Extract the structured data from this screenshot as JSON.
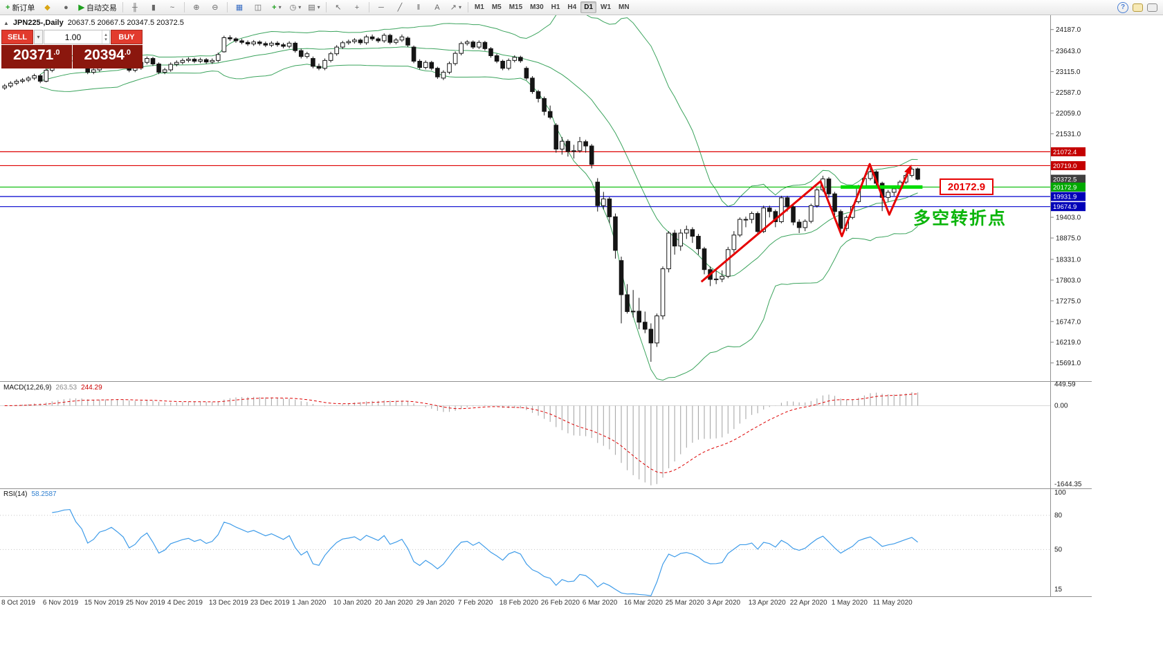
{
  "toolbar": {
    "new_order_label": "新订单",
    "autotrade_label": "自动交易",
    "timeframes": [
      "M1",
      "M5",
      "M15",
      "M30",
      "H1",
      "H4",
      "D1",
      "W1",
      "MN"
    ],
    "active_timeframe": "D1"
  },
  "icons": {
    "new_order_plus": "+",
    "mql5": "◆",
    "user": "●",
    "play": "▶",
    "bar_chart": "╫",
    "candles": "▮",
    "line_chart": "~",
    "zoom_in": "⊕",
    "zoom_out": "⊖",
    "indicators": "▦",
    "tile_windows": "◫",
    "new_chart_plus": "+",
    "period": "◷",
    "templates": "▤",
    "cursor": "↖",
    "crosshair": "+",
    "hline": "─",
    "trendline": "╱",
    "channel": "‖",
    "text_tool": "A",
    "arrow_tool": "↗",
    "dropdown": "▾",
    "collapse": "▲",
    "help": "?",
    "spin_up": "▴",
    "spin_down": "▾"
  },
  "chart_header": {
    "symbol": "JPN225-,Daily",
    "ohlc": "20637.5 20667.5 20347.5 20372.5"
  },
  "trade_widget": {
    "sell_label": "SELL",
    "buy_label": "BUY",
    "volume": "1.00",
    "sell_price_big": "20371",
    "sell_price_small": ".0",
    "buy_price_big": "20394",
    "buy_price_small": ".0"
  },
  "price_axis": {
    "ticks": [
      "24187.0",
      "23643.0",
      "23115.0",
      "22587.0",
      "22059.0",
      "21531.0",
      "19403.0",
      "18875.0",
      "18331.0",
      "17803.0",
      "17275.0",
      "16747.0",
      "16219.0",
      "15691.0"
    ],
    "levels": [
      {
        "label": "21072.4",
        "price": 21072.4,
        "line_color": "#dd0000",
        "box_color": "#c40000"
      },
      {
        "label": "20719.0",
        "price": 20719.0,
        "line_color": "#dd0000",
        "box_color": "#c40000"
      },
      {
        "label": "20372.5",
        "price": 20372.5,
        "line_color": null,
        "box_color": "#3f3f3f",
        "current": true
      },
      {
        "label": "20172.9",
        "price": 20172.9,
        "line_color": "#00bb00",
        "box_color": "#00a800"
      },
      {
        "label": "19931.9",
        "price": 19931.9,
        "line_color": "#0000cd",
        "box_color": "#0000b8"
      },
      {
        "label": "19674.9",
        "price": 19674.9,
        "line_color": "#0000cd",
        "box_color": "#0000b8"
      }
    ]
  },
  "annotations": {
    "zigzag": {
      "color": "#e60000",
      "width": 3,
      "points": [
        {
          "i": 117.5,
          "p": 17760
        },
        {
          "i": 137.6,
          "p": 20320
        },
        {
          "i": 141.2,
          "p": 18920
        },
        {
          "i": 145.9,
          "p": 20760
        },
        {
          "i": 149.2,
          "p": 19470
        },
        {
          "i": 152.8,
          "p": 20700
        }
      ]
    },
    "support_segment": {
      "price": 20172.9,
      "i1": 141,
      "i2": 154.8,
      "color": "#00dd00",
      "width": 5
    },
    "price_callout": {
      "text": "20172.9",
      "anchor_price": 20172.9,
      "color": "#e60000"
    },
    "turning_point": {
      "text": "多空转折点",
      "color": "#0bb50b"
    }
  },
  "macd_panel": {
    "label": "MACD(12,26,9)",
    "value_main": "263.53",
    "value_signal": "244.29",
    "axis_labels": [
      "449.59",
      "0.00",
      "-1644.35"
    ],
    "histogram_color": "#a8a8a8",
    "signal_color": "#dd0000"
  },
  "rsi_panel": {
    "label": "RSI(14)",
    "value": "58.2587",
    "axis_labels": [
      "100",
      "80",
      "50",
      "15"
    ],
    "levels": [
      80,
      50
    ],
    "line_color": "#3d9be9"
  },
  "chart_data": {
    "type": "candlestick",
    "symbol": "JPN225-",
    "timeframe": "Daily",
    "current_ohlc": [
      20637.5,
      20667.5,
      20347.5,
      20372.5
    ],
    "ylim": [
      15280,
      24270
    ],
    "x_labels": [
      "8 Oct 2019",
      "6 Nov 2019",
      "15 Nov 2019",
      "25 Nov 2019",
      "4 Dec 2019",
      "13 Dec 2019",
      "23 Dec 2019",
      "1 Jan 2020",
      "10 Jan 2020",
      "20 Jan 2020",
      "29 Jan 2020",
      "7 Feb 2020",
      "18 Feb 2020",
      "26 Feb 2020",
      "6 Mar 2020",
      "16 Mar 2020",
      "25 Mar 2020",
      "3 Apr 2020",
      "13 Apr 2020",
      "22 Apr 2020",
      "1 May 2020",
      "11 May 2020"
    ],
    "overlays": [
      {
        "name": "Bollinger Bands",
        "period": 20,
        "deviation": 2,
        "color": "#3aa35c"
      }
    ],
    "indicators": [
      {
        "name": "MACD",
        "params": [
          12,
          26,
          9
        ],
        "current": [
          263.53,
          244.29
        ],
        "range": [
          -1644.35,
          449.59
        ]
      },
      {
        "name": "RSI",
        "params": [
          14
        ],
        "current": 58.2587
      }
    ],
    "candles_ohlc": [
      [
        22700,
        22800,
        22650,
        22750
      ],
      [
        22750,
        22870,
        22700,
        22820
      ],
      [
        22820,
        22920,
        22770,
        22870
      ],
      [
        22870,
        22950,
        22820,
        22900
      ],
      [
        22900,
        23000,
        22850,
        22950
      ],
      [
        22950,
        23060,
        22900,
        23010
      ],
      [
        23010,
        23050,
        22820,
        22870
      ],
      [
        22870,
        23200,
        22840,
        23150
      ],
      [
        23150,
        23340,
        23100,
        23290
      ],
      [
        23290,
        23370,
        23240,
        23320
      ],
      [
        23320,
        23430,
        23270,
        23380
      ],
      [
        23380,
        23450,
        23330,
        23400
      ],
      [
        23400,
        23440,
        23260,
        23310
      ],
      [
        23310,
        23360,
        23200,
        23250
      ],
      [
        23250,
        23300,
        23050,
        23100
      ],
      [
        23100,
        23210,
        23050,
        23160
      ],
      [
        23160,
        23350,
        23110,
        23300
      ],
      [
        23300,
        23390,
        23250,
        23340
      ],
      [
        23340,
        23460,
        23290,
        23410
      ],
      [
        23410,
        23450,
        23310,
        23360
      ],
      [
        23360,
        23410,
        23250,
        23300
      ],
      [
        23300,
        23340,
        23100,
        23150
      ],
      [
        23150,
        23260,
        23100,
        23210
      ],
      [
        23210,
        23400,
        23160,
        23350
      ],
      [
        23350,
        23500,
        23300,
        23450
      ],
      [
        23450,
        23490,
        23260,
        23310
      ],
      [
        23310,
        23350,
        23050,
        23100
      ],
      [
        23100,
        23210,
        23050,
        23160
      ],
      [
        23160,
        23350,
        23110,
        23300
      ],
      [
        23300,
        23400,
        23250,
        23350
      ],
      [
        23350,
        23450,
        23300,
        23400
      ],
      [
        23400,
        23480,
        23350,
        23430
      ],
      [
        23430,
        23470,
        23330,
        23380
      ],
      [
        23380,
        23470,
        23330,
        23420
      ],
      [
        23420,
        23460,
        23310,
        23360
      ],
      [
        23360,
        23450,
        23310,
        23400
      ],
      [
        23400,
        23600,
        23350,
        23550
      ],
      [
        23620,
        24030,
        23600,
        23980
      ],
      [
        23980,
        24040,
        23900,
        23950
      ],
      [
        23950,
        23990,
        23850,
        23900
      ],
      [
        23900,
        23950,
        23810,
        23860
      ],
      [
        23860,
        23910,
        23770,
        23820
      ],
      [
        23820,
        23920,
        23770,
        23870
      ],
      [
        23870,
        23910,
        23780,
        23830
      ],
      [
        23830,
        23880,
        23740,
        23790
      ],
      [
        23790,
        23890,
        23740,
        23840
      ],
      [
        23840,
        23890,
        23750,
        23800
      ],
      [
        23800,
        23850,
        23710,
        23760
      ],
      [
        23760,
        23890,
        23710,
        23840
      ],
      [
        23840,
        23880,
        23600,
        23650
      ],
      [
        23650,
        23700,
        23450,
        23500
      ],
      [
        23500,
        23620,
        23450,
        23570
      ],
      [
        23450,
        23500,
        23200,
        23250
      ],
      [
        23250,
        23320,
        23150,
        23200
      ],
      [
        23200,
        23450,
        23150,
        23400
      ],
      [
        23400,
        23620,
        23350,
        23570
      ],
      [
        23570,
        23790,
        23520,
        23740
      ],
      [
        23740,
        23900,
        23690,
        23850
      ],
      [
        23850,
        23930,
        23800,
        23880
      ],
      [
        23880,
        23970,
        23830,
        23920
      ],
      [
        23920,
        23960,
        23800,
        23850
      ],
      [
        23850,
        24050,
        23800,
        24000
      ],
      [
        24000,
        24060,
        23900,
        23950
      ],
      [
        23950,
        23990,
        23850,
        23900
      ],
      [
        23900,
        24090,
        23850,
        24040
      ],
      [
        24040,
        24080,
        23810,
        23860
      ],
      [
        23860,
        23970,
        23810,
        23920
      ],
      [
        23920,
        24060,
        23870,
        24000
      ],
      [
        23970,
        24010,
        23740,
        23790
      ],
      [
        23740,
        23780,
        23330,
        23380
      ],
      [
        23380,
        23430,
        23170,
        23220
      ],
      [
        23220,
        23400,
        23170,
        23350
      ],
      [
        23350,
        23390,
        23150,
        23200
      ],
      [
        23200,
        23240,
        22930,
        22980
      ],
      [
        22950,
        23150,
        22900,
        23100
      ],
      [
        23100,
        23370,
        23050,
        23320
      ],
      [
        23320,
        23630,
        23270,
        23580
      ],
      [
        23580,
        23880,
        23530,
        23830
      ],
      [
        23830,
        23920,
        23780,
        23870
      ],
      [
        23870,
        23910,
        23690,
        23740
      ],
      [
        23740,
        23910,
        23690,
        23860
      ],
      [
        23860,
        23900,
        23650,
        23700
      ],
      [
        23700,
        23740,
        23470,
        23520
      ],
      [
        23520,
        23570,
        23330,
        23380
      ],
      [
        23380,
        23420,
        23150,
        23200
      ],
      [
        23200,
        23450,
        23150,
        23400
      ],
      [
        23400,
        23530,
        23350,
        23480
      ],
      [
        23480,
        23520,
        23340,
        23390
      ],
      [
        23200,
        23250,
        22900,
        22950
      ],
      [
        22950,
        23000,
        22550,
        22605
      ],
      [
        22605,
        22650,
        22330,
        22430
      ],
      [
        22430,
        22480,
        22000,
        22100
      ],
      [
        22100,
        22250,
        21900,
        21950
      ],
      [
        21750,
        21800,
        21050,
        21140
      ],
      [
        21140,
        21450,
        21000,
        21340
      ],
      [
        21340,
        21390,
        20950,
        21080
      ],
      [
        21080,
        21250,
        20900,
        21100
      ],
      [
        21100,
        21450,
        21050,
        21330
      ],
      [
        21330,
        21380,
        21050,
        21220
      ],
      [
        21220,
        21270,
        20650,
        20750
      ],
      [
        20300,
        20400,
        19550,
        19700
      ],
      [
        19700,
        20050,
        19600,
        19870
      ],
      [
        19870,
        19920,
        19250,
        19416
      ],
      [
        19416,
        19500,
        18350,
        18560
      ],
      [
        18300,
        18400,
        16700,
        17430
      ],
      [
        17430,
        17700,
        16950,
        17000
      ],
      [
        17000,
        17550,
        16850,
        17010
      ],
      [
        17010,
        17350,
        16550,
        16730
      ],
      [
        16730,
        17000,
        16450,
        16550
      ],
      [
        16550,
        16700,
        15720,
        16200
      ],
      [
        16200,
        16950,
        16100,
        16890
      ],
      [
        16890,
        18150,
        16800,
        18090
      ],
      [
        18090,
        19050,
        18000,
        19000
      ],
      [
        19000,
        19080,
        18450,
        18670
      ],
      [
        18670,
        19100,
        18550,
        19000
      ],
      [
        19000,
        19190,
        18850,
        19090
      ],
      [
        19090,
        19150,
        18750,
        18920
      ],
      [
        18920,
        18980,
        18450,
        18600
      ],
      [
        18600,
        18650,
        17950,
        18070
      ],
      [
        18070,
        18150,
        17650,
        17820
      ],
      [
        17820,
        18100,
        17700,
        17830
      ],
      [
        17830,
        18050,
        17750,
        17900
      ],
      [
        17900,
        18650,
        17850,
        18580
      ],
      [
        18580,
        19050,
        18500,
        18950
      ],
      [
        18950,
        19400,
        18900,
        19350
      ],
      [
        19350,
        19420,
        19150,
        19350
      ],
      [
        19350,
        19550,
        19250,
        19500
      ],
      [
        19500,
        19550,
        18950,
        19040
      ],
      [
        19040,
        19700,
        19000,
        19640
      ],
      [
        19640,
        19700,
        19400,
        19550
      ],
      [
        19550,
        19600,
        19150,
        19290
      ],
      [
        19290,
        19950,
        19250,
        19900
      ],
      [
        19900,
        19950,
        19550,
        19670
      ],
      [
        19670,
        19720,
        19200,
        19280
      ],
      [
        19280,
        19350,
        19000,
        19140
      ],
      [
        19140,
        19350,
        19050,
        19300
      ],
      [
        19300,
        19750,
        19250,
        19700
      ],
      [
        19700,
        20150,
        19650,
        20100
      ],
      [
        20100,
        20460,
        20050,
        20380
      ],
      [
        20380,
        20430,
        19900,
        20000
      ],
      [
        20000,
        20050,
        19450,
        19550
      ],
      [
        19550,
        19600,
        18990,
        19120
      ],
      [
        19120,
        19450,
        19050,
        19400
      ],
      [
        19400,
        19720,
        19350,
        19674
      ],
      [
        19800,
        20230,
        19750,
        20180
      ],
      [
        20180,
        20450,
        20130,
        20390
      ],
      [
        20390,
        20719,
        20340,
        20560
      ],
      [
        20560,
        20600,
        20200,
        20270
      ],
      [
        20270,
        20310,
        19560,
        19910
      ],
      [
        19910,
        20100,
        19800,
        20040
      ],
      [
        20040,
        20180,
        19950,
        20130
      ],
      [
        20130,
        20350,
        20080,
        20300
      ],
      [
        20300,
        20520,
        20250,
        20470
      ],
      [
        20470,
        20680,
        20420,
        20630
      ],
      [
        20637.5,
        20667.5,
        20347.5,
        20372.5
      ]
    ]
  }
}
